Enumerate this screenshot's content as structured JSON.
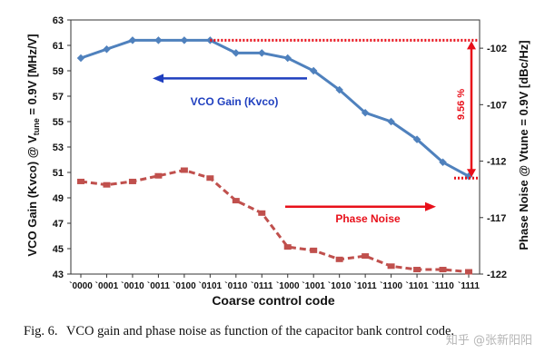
{
  "chart_data": {
    "type": "line",
    "categories": [
      "`0000",
      "`0001",
      "`0010",
      "`0011",
      "`0100",
      "`0101",
      "`0110",
      "`0111",
      "`1000",
      "`1001",
      "`1010",
      "`1011",
      "`1100",
      "`1101",
      "`1110",
      "`1111"
    ],
    "xlabel": "Coarse control code",
    "ylabel_left": "VCO Gain (Kvco) @ Vtune = 0.9V [MHz/V]",
    "ylabel_left_parts": {
      "before": "VCO Gain (Kvco) @ V",
      "sub": "tune",
      "after": " = 0.9V [MHz/V]"
    },
    "ylabel_right": "Phase Noise @ Vtune = 0.9V [dBc/Hz]",
    "ylim_left": [
      43,
      63
    ],
    "yticks_left": [
      "43",
      "45",
      "47",
      "49",
      "51",
      "53",
      "55",
      "57",
      "59",
      "61",
      "63"
    ],
    "ylim_right": [
      -122,
      -99.5
    ],
    "yticks_right": [
      "-102",
      "-107",
      "-112",
      "-117",
      "-122"
    ],
    "series": [
      {
        "name": "VCO Gain (Kvco)",
        "axis": "left",
        "color": "#4f81bd",
        "values": [
          60.0,
          60.7,
          61.4,
          61.4,
          61.4,
          61.4,
          60.4,
          60.4,
          60.0,
          59.0,
          57.5,
          55.7,
          55.0,
          53.6,
          51.8,
          50.7
        ]
      },
      {
        "name": "Phase Noise",
        "axis": "right",
        "color": "#c0504d",
        "values": [
          -113.8,
          -114.1,
          -113.8,
          -113.3,
          -112.8,
          -113.5,
          -115.5,
          -116.6,
          -119.6,
          -119.9,
          -120.7,
          -120.4,
          -121.3,
          -121.6,
          -121.6,
          -121.8
        ]
      }
    ],
    "annotations": {
      "gain_label": "VCO Gain (Kvco)",
      "noise_label": "Phase Noise",
      "delta_label": "9.56 %"
    }
  },
  "caption": {
    "label": "Fig. 6.",
    "text": "VCO gain and phase noise as function of the capacitor bank control code."
  },
  "watermark": "知乎 @张新阳阳",
  "colors": {
    "arrow_red": "#e8101a",
    "arrow_blue": "#1f3fbf",
    "dotted_red": "#e8101a"
  }
}
